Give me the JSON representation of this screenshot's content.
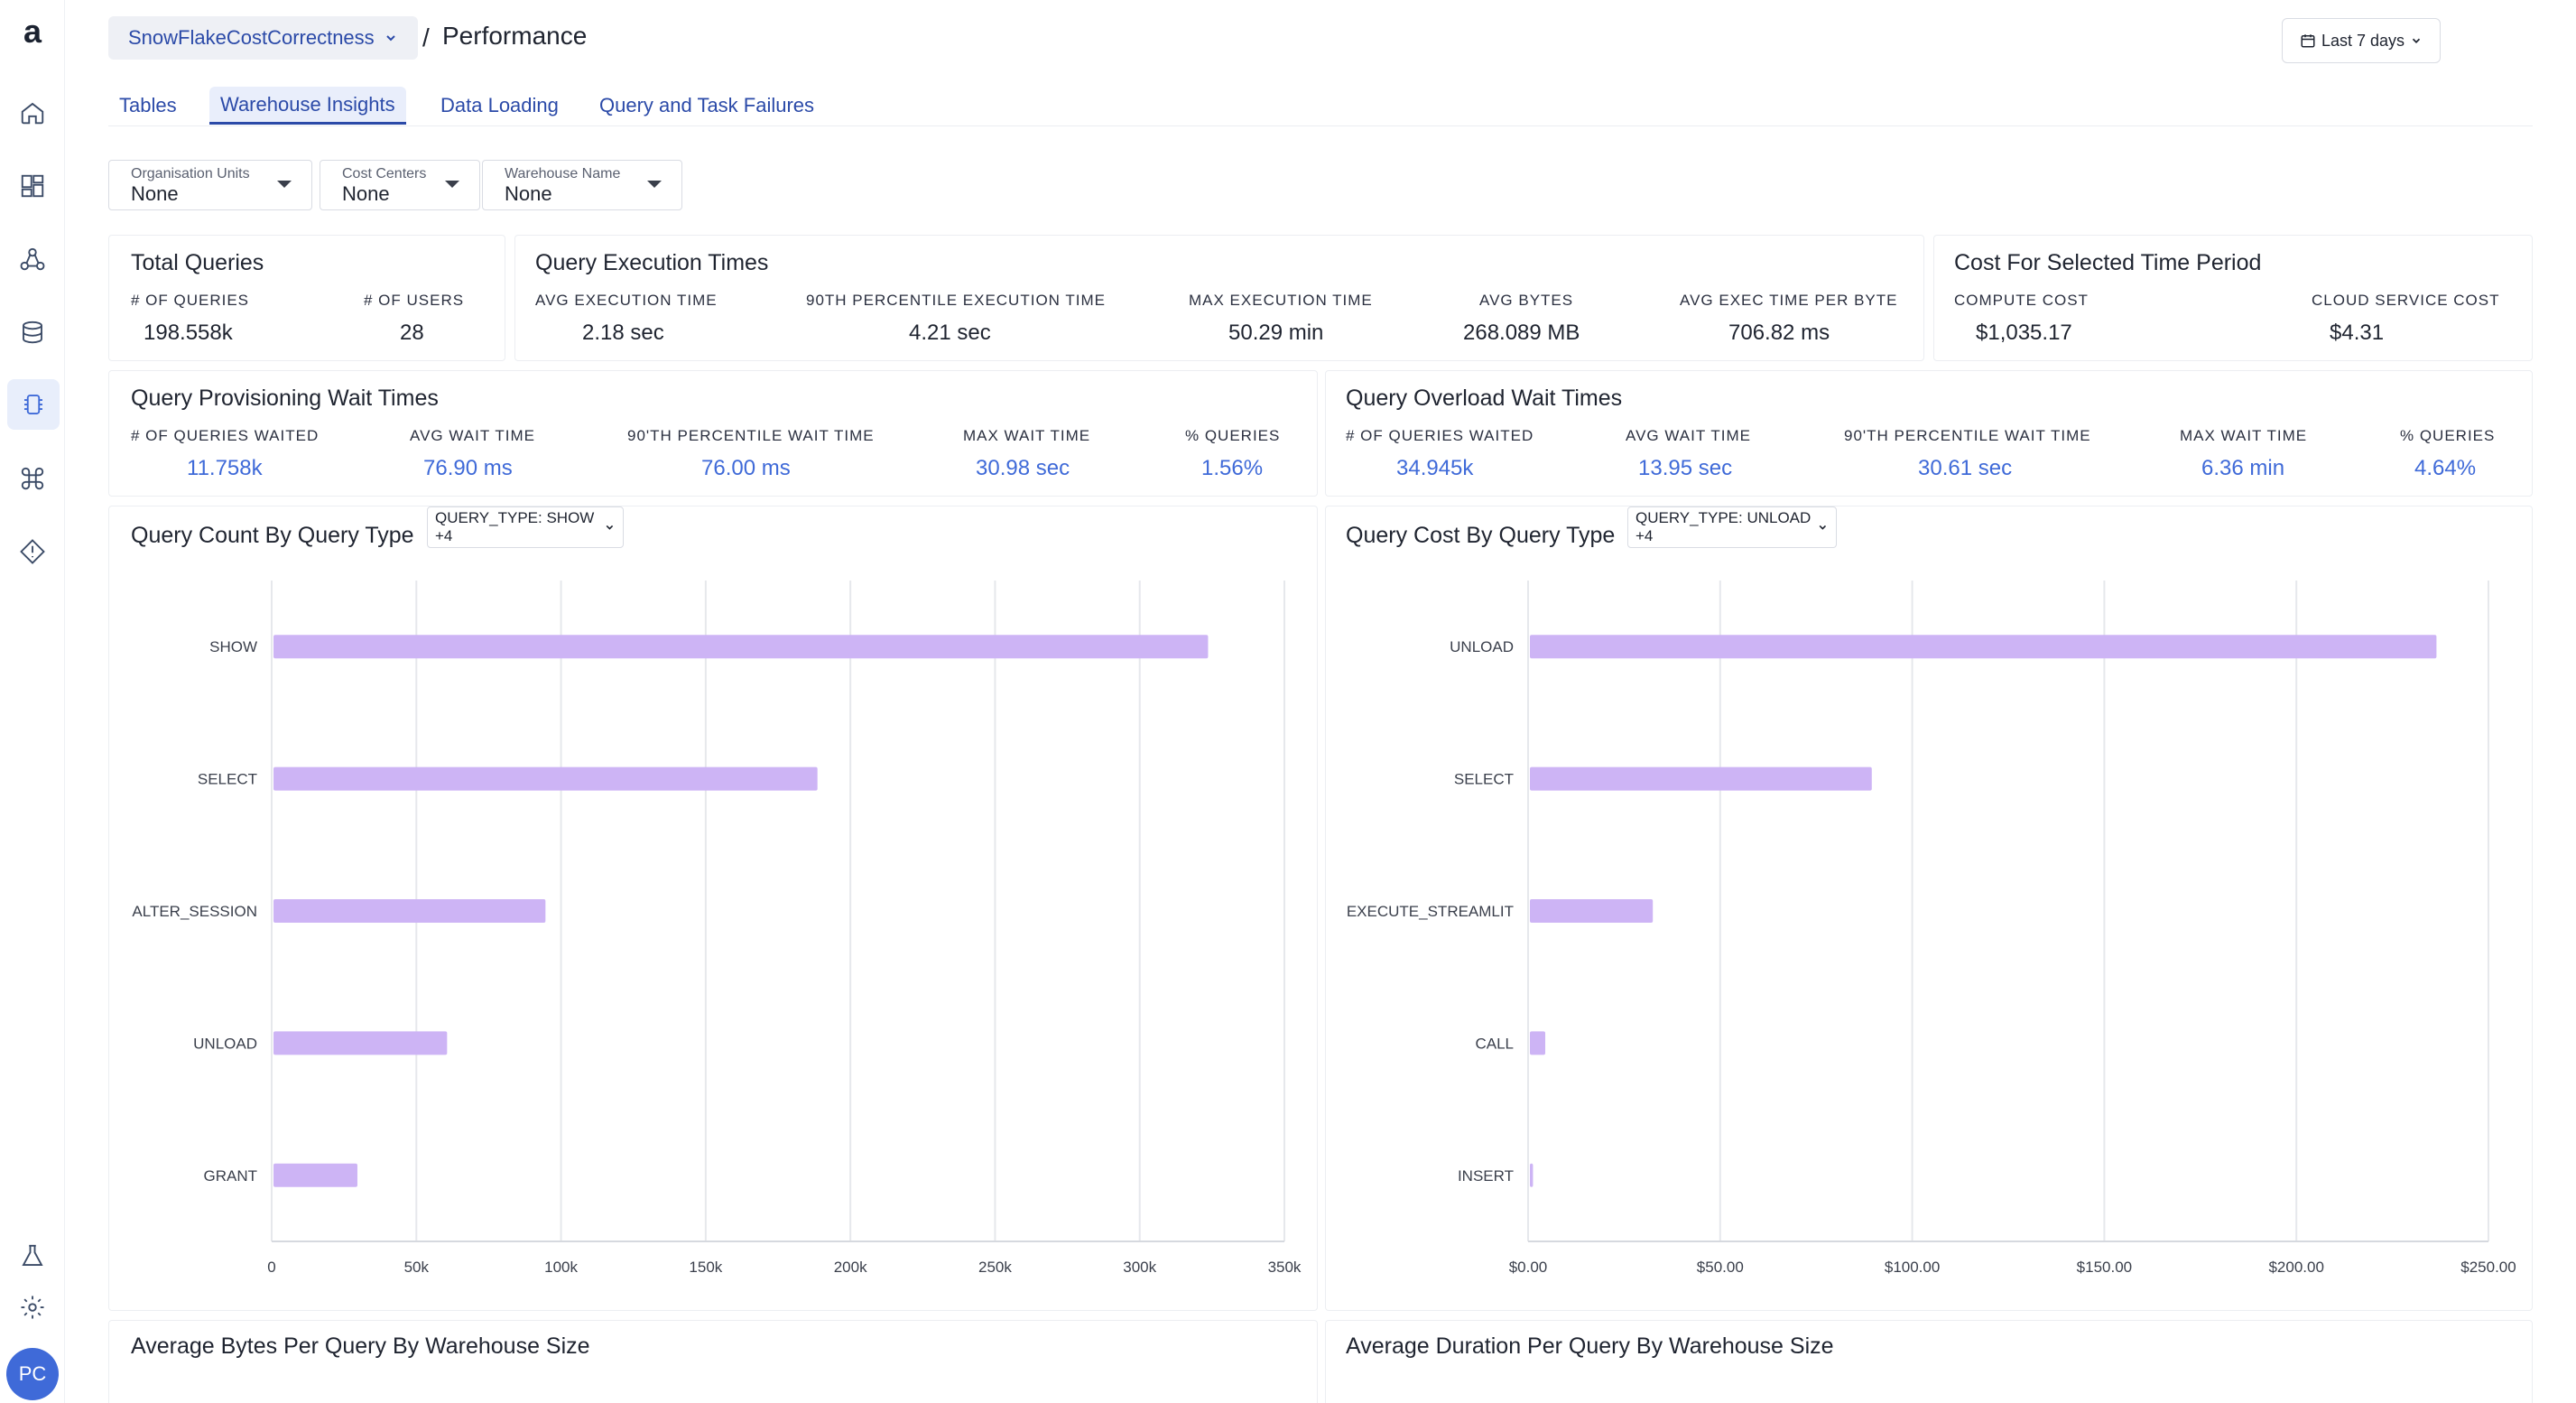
{
  "sidebar": {
    "logo": "a",
    "items": [
      {
        "name": "home-icon"
      },
      {
        "name": "dashboard-icon"
      },
      {
        "name": "network-icon"
      },
      {
        "name": "database-icon"
      },
      {
        "name": "chip-icon",
        "active": true
      },
      {
        "name": "command-icon"
      },
      {
        "name": "alert-diamond-icon"
      }
    ],
    "bottom": [
      {
        "name": "lab-icon"
      },
      {
        "name": "gear-icon"
      }
    ],
    "avatar": "PC"
  },
  "header": {
    "workspace": "SnowFlakeCostCorrectness",
    "separator": "/",
    "title": "Performance",
    "date_range": "Last 7 days"
  },
  "tabs": [
    "Tables",
    "Warehouse Insights",
    "Data Loading",
    "Query and Task Failures"
  ],
  "filters": [
    {
      "label": "Organisation Units",
      "value": "None"
    },
    {
      "label": "Cost Centers",
      "value": "None"
    },
    {
      "label": "Warehouse Name",
      "value": "None"
    }
  ],
  "total_queries": {
    "title": "Total Queries",
    "metrics": [
      {
        "label": "# OF QUERIES",
        "value": "198.558k"
      },
      {
        "label": "# OF USERS",
        "value": "28"
      }
    ]
  },
  "exec_times": {
    "title": "Query Execution Times",
    "metrics": [
      {
        "label": "AVG EXECUTION TIME",
        "value": "2.18 sec"
      },
      {
        "label": "90TH PERCENTILE EXECUTION TIME",
        "value": "4.21 sec"
      },
      {
        "label": "MAX EXECUTION TIME",
        "value": "50.29 min"
      },
      {
        "label": "AVG BYTES",
        "value": "268.089 MB"
      },
      {
        "label": "AVG EXEC TIME PER BYTE",
        "value": "706.82 ms"
      }
    ]
  },
  "cost_period": {
    "title": "Cost For Selected Time Period",
    "metrics": [
      {
        "label": "COMPUTE COST",
        "value": "$1,035.17"
      },
      {
        "label": "CLOUD SERVICE COST",
        "value": "$4.31"
      }
    ]
  },
  "provisioning": {
    "title": "Query Provisioning Wait Times",
    "metrics": [
      {
        "label": "# OF QUERIES WAITED",
        "value": "11.758k"
      },
      {
        "label": "AVG WAIT TIME",
        "value": "76.90 ms"
      },
      {
        "label": "90'TH PERCENTILE WAIT TIME",
        "value": "76.00 ms"
      },
      {
        "label": "MAX WAIT TIME",
        "value": "30.98 sec"
      },
      {
        "label": "% QUERIES",
        "value": "1.56%"
      }
    ]
  },
  "overload": {
    "title": "Query Overload Wait Times",
    "metrics": [
      {
        "label": "# OF QUERIES WAITED",
        "value": "34.945k"
      },
      {
        "label": "AVG WAIT TIME",
        "value": "13.95 sec"
      },
      {
        "label": "90'TH PERCENTILE WAIT TIME",
        "value": "30.61 sec"
      },
      {
        "label": "MAX WAIT TIME",
        "value": "6.36 min"
      },
      {
        "label": "% QUERIES",
        "value": "4.64%"
      }
    ]
  },
  "count_chart": {
    "title": "Query Count By Query Type",
    "selector": "QUERY_TYPE: SHOW +4"
  },
  "cost_chart": {
    "title": "Query Cost By Query Type",
    "selector": "QUERY_TYPE: UNLOAD +4"
  },
  "bottom_cards": {
    "bytes_title": "Average Bytes Per Query By Warehouse Size",
    "duration_title": "Average Duration Per Query By Warehouse Size"
  },
  "chart_data": [
    {
      "type": "bar",
      "orientation": "horizontal",
      "title": "Query Count By Query Type",
      "categories": [
        "SHOW",
        "SELECT",
        "ALTER_SESSION",
        "UNLOAD",
        "GRANT"
      ],
      "values": [
        323000,
        188000,
        94000,
        60000,
        29000
      ],
      "xlim": [
        0,
        350000
      ],
      "ticks": [
        0,
        50000,
        100000,
        150000,
        200000,
        250000,
        300000,
        350000
      ],
      "tick_labels": [
        "0",
        "50k",
        "100k",
        "150k",
        "200k",
        "250k",
        "300k",
        "350k"
      ],
      "color": "#cdb4f5"
    },
    {
      "type": "bar",
      "orientation": "horizontal",
      "title": "Query Cost By Query Type",
      "categories": [
        "UNLOAD",
        "SELECT",
        "EXECUTE_STREAMLIT",
        "CALL",
        "INSERT"
      ],
      "values": [
        236,
        89,
        32,
        4,
        0.8
      ],
      "xlim": [
        0,
        250
      ],
      "ticks": [
        0,
        50,
        100,
        150,
        200,
        250
      ],
      "tick_labels": [
        "$0.00",
        "$50.00",
        "$100.00",
        "$150.00",
        "$200.00",
        "$250.00"
      ],
      "color": "#cdb4f5"
    }
  ]
}
